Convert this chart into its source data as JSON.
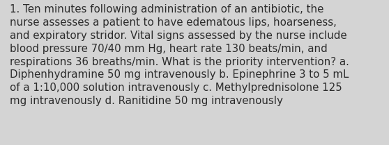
{
  "text": "1. Ten minutes following administration of an antibiotic, the\nnurse assesses a patient to have edematous lips, hoarseness,\nand expiratory stridor. Vital signs assessed by the nurse include\nblood pressure 70/40 mm Hg, heart rate 130 beats/min, and\nrespirations 36 breaths/min. What is the priority intervention? a.\nDiphenhydramine 50 mg intravenously b. Epinephrine 3 to 5 mL\nof a 1:10,000 solution intravenously c. Methylprednisolone 125\nmg intravenously d. Ranitidine 50 mg intravenously",
  "background_color": "#d4d4d4",
  "text_color": "#2b2b2b",
  "font_size": 10.8,
  "figwidth": 5.58,
  "figheight": 2.09,
  "dpi": 100
}
